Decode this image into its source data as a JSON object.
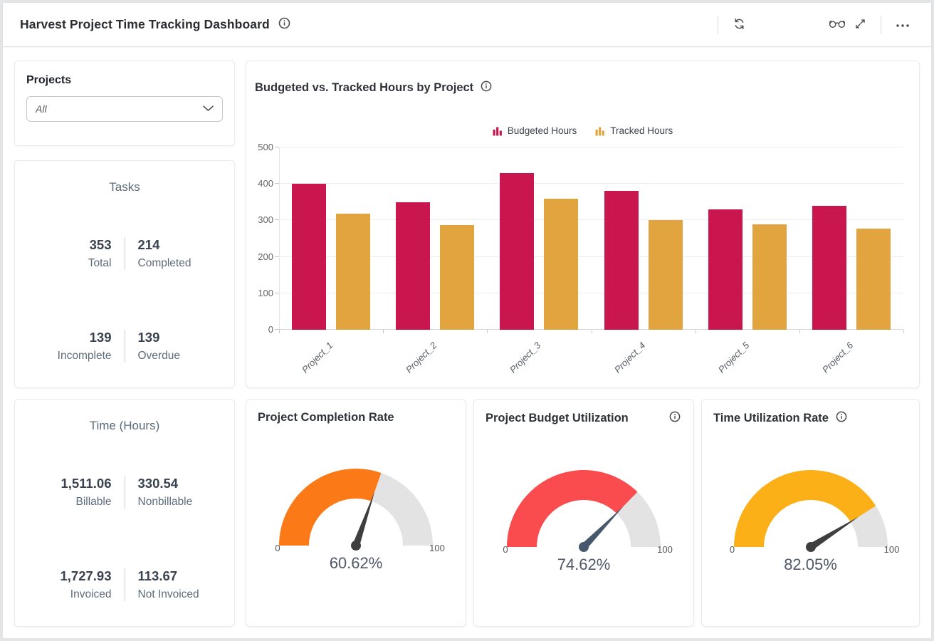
{
  "header": {
    "title": "Harvest Project Time Tracking Dashboard"
  },
  "sidebar": {
    "projects": {
      "label": "Projects",
      "selected": "All"
    },
    "tasks": {
      "title": "Tasks",
      "stats": [
        {
          "value": "353",
          "label": "Total"
        },
        {
          "value": "214",
          "label": "Completed"
        },
        {
          "value": "139",
          "label": "Incomplete"
        },
        {
          "value": "139",
          "label": "Overdue"
        }
      ]
    },
    "time": {
      "title": "Time (Hours)",
      "stats": [
        {
          "value": "1,511.06",
          "label": "Billable"
        },
        {
          "value": "330.54",
          "label": "Nonbillable"
        },
        {
          "value": "1,727.93",
          "label": "Invoiced"
        },
        {
          "value": "113.67",
          "label": "Not Invoiced"
        }
      ]
    }
  },
  "chart_data": {
    "type": "bar",
    "title": "Budgeted vs. Tracked Hours by Project",
    "categories": [
      "Project_1",
      "Project_2",
      "Project_3",
      "Project_4",
      "Project_5",
      "Project_6"
    ],
    "series": [
      {
        "name": "Budgeted Hours",
        "color": "#C9164F",
        "values": [
          400,
          350,
          430,
          380,
          330,
          340
        ]
      },
      {
        "name": "Tracked Hours",
        "color": "#E2A43E",
        "values": [
          318,
          288,
          360,
          300,
          290,
          277
        ]
      }
    ],
    "ylim": [
      0,
      500
    ],
    "yticks": [
      0,
      100,
      200,
      300,
      400,
      500
    ],
    "grid": true,
    "legend_position": "top-center"
  },
  "gauges": [
    {
      "title": "Project Completion Rate",
      "value": 60.62,
      "display": "60.62%",
      "min": "0",
      "max": "100",
      "color": "#FB7A17",
      "needle_color": "#3E3E3E"
    },
    {
      "title": "Project Budget Utilization",
      "value": 74.62,
      "display": "74.62%",
      "min": "0",
      "max": "100",
      "color": "#FA4B4E",
      "needle_color": "#47586C"
    },
    {
      "title": "Time Utilization Rate",
      "value": 82.05,
      "display": "82.05%",
      "min": "0",
      "max": "100",
      "color": "#FBB017",
      "needle_color": "#3E3E3E"
    }
  ],
  "colors": {
    "gauge_track": "#E3E3E3",
    "bar_budgeted": "#C9164F",
    "bar_tracked": "#E2A43E"
  }
}
